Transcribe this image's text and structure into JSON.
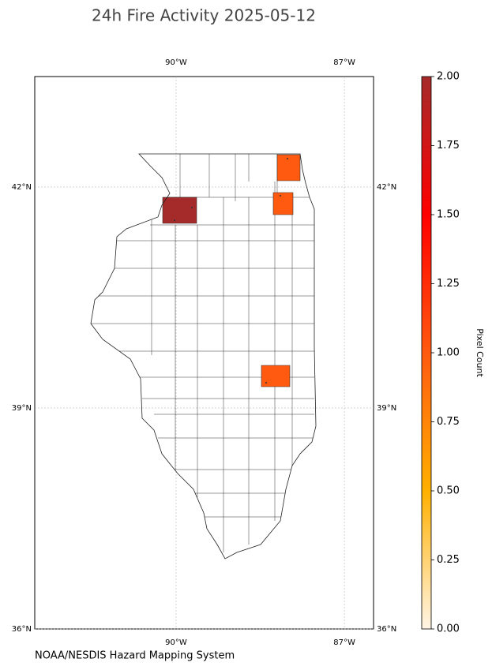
{
  "title": "24h Fire Activity 2025-05-12",
  "source": "NOAA/NESDIS Hazard Mapping System",
  "map": {
    "xlim": [
      -92.52,
      -86.48
    ],
    "ylim": [
      36,
      43.5
    ],
    "lon_ticks": [
      {
        "value": -90,
        "label": "90°W"
      },
      {
        "value": -87,
        "label": "87°W"
      }
    ],
    "lat_ticks": [
      {
        "value": 42,
        "label": "42°N"
      },
      {
        "value": 39,
        "label": "39°N"
      },
      {
        "value": 36,
        "label": "36°N"
      }
    ],
    "fires": [
      {
        "value": 2
      },
      {
        "value": 1
      },
      {
        "value": 1
      },
      {
        "value": 1
      }
    ]
  },
  "colorbar": {
    "label": "Pixel Count",
    "lim": [
      0,
      2
    ],
    "colors": [
      "#fff5e6",
      "#ffb000",
      "#ff5a10",
      "#ff0000",
      "#a52a2a"
    ],
    "ticks": [
      {
        "value": 0,
        "label": "0.00"
      },
      {
        "value": 0.25,
        "label": "0.25"
      },
      {
        "value": 0.5,
        "label": "0.50"
      },
      {
        "value": 0.75,
        "label": "0.75"
      },
      {
        "value": 1,
        "label": "1.00"
      },
      {
        "value": 1.25,
        "label": "1.25"
      },
      {
        "value": 1.5,
        "label": "1.50"
      },
      {
        "value": 1.75,
        "label": "1.75"
      },
      {
        "value": 2,
        "label": "2.00"
      }
    ]
  }
}
